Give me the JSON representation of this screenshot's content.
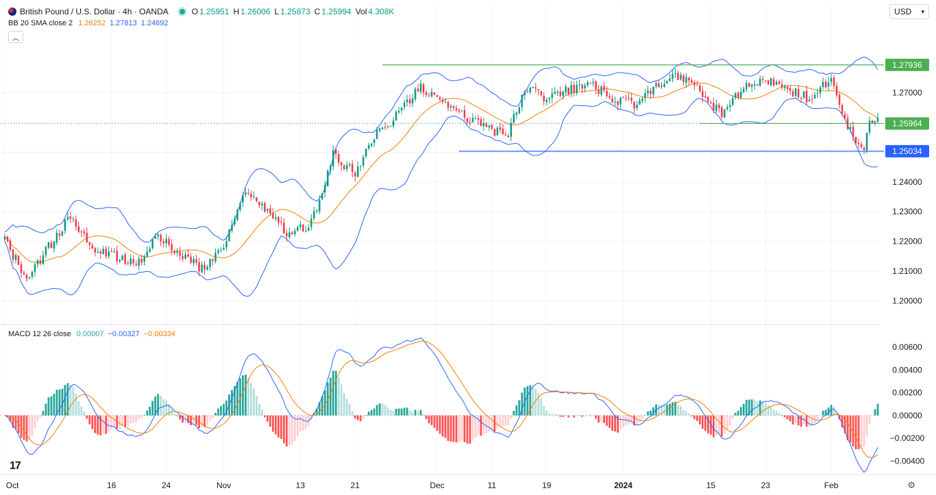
{
  "header": {
    "symbol": "British Pound / U.S. Dollar · 4h · OANDA",
    "ohlc": [
      {
        "key": "O",
        "value": "1.25951"
      },
      {
        "key": "H",
        "value": "1.26006"
      },
      {
        "key": "L",
        "value": "1.25873"
      },
      {
        "key": "C",
        "value": "1.25994"
      }
    ],
    "vol_key": "Vol",
    "vol_value": "4.308K",
    "bb_label": "BB 20 SMA close 2",
    "bb_values": [
      "1.26252",
      "1.27813",
      "1.24692"
    ],
    "macd_label": "MACD 12 26 close",
    "macd_values": [
      "0.00007",
      "−0.00327",
      "−0.00334"
    ],
    "currency": "USD"
  },
  "icons": {
    "flag": "gbp-usd-flag-icon",
    "chevron": "chevron-down-icon",
    "collapse": "chevron-up-icon",
    "logo": "tradingview-logo-icon",
    "settings": "gear-icon"
  },
  "colors": {
    "up": "#089981",
    "down": "#f23645",
    "bb_band": "#2962ff",
    "bb_basis": "#f57c00",
    "macd_line": "#2962ff",
    "signal_line": "#f57c00",
    "level_green": "#4caf50",
    "level_blue": "#2962ff"
  },
  "chart_data": [
    {
      "type": "candlestick",
      "title": "British Pound / U.S. Dollar · 4h · OANDA",
      "ylim": [
        1.193,
        1.2915
      ],
      "y_ticks": [
        "1.27000",
        "1.26000",
        "1.25000",
        "1.24000",
        "1.23000",
        "1.22000",
        "1.21000",
        "1.20000"
      ],
      "x_ticks": [
        "Oct",
        "16",
        "24",
        "Nov",
        "13",
        "21",
        "Dec",
        "11",
        "19",
        "2024",
        "15",
        "23",
        "Feb"
      ],
      "x_tick_bars": [
        0,
        39,
        59,
        80,
        108,
        128,
        158,
        178,
        198,
        226,
        258,
        278,
        302
      ],
      "total_bars": 320,
      "close_path_bars": [
        0,
        8,
        16,
        24,
        32,
        40,
        48,
        56,
        64,
        72,
        80,
        88,
        96,
        104,
        112,
        120,
        128,
        136,
        144,
        152,
        160,
        168,
        176,
        184,
        190,
        198,
        206,
        214,
        222,
        230,
        238,
        246,
        254,
        262,
        270,
        278,
        286,
        294,
        302,
        306,
        310,
        314,
        316
      ],
      "close_path": [
        1.22,
        1.208,
        1.218,
        1.229,
        1.218,
        1.215,
        1.212,
        1.222,
        1.215,
        1.211,
        1.219,
        1.237,
        1.23,
        1.222,
        1.226,
        1.249,
        1.243,
        1.256,
        1.263,
        1.272,
        1.266,
        1.262,
        1.258,
        1.256,
        1.272,
        1.268,
        1.271,
        1.273,
        1.268,
        1.266,
        1.273,
        1.276,
        1.271,
        1.262,
        1.272,
        1.275,
        1.271,
        1.268,
        1.275,
        1.264,
        1.255,
        1.252,
        1.26
      ],
      "levels": [
        {
          "label": "1.27936",
          "value": 1.27936,
          "color": "#4caf50",
          "from_bar": 138
        },
        {
          "label": "1.25964",
          "value": 1.25964,
          "color": "#4caf50",
          "from_bar": 254
        },
        {
          "label": "1.25034",
          "value": 1.25034,
          "color": "#2962ff",
          "from_bar": 166
        }
      ],
      "last_price": 1.25964,
      "series": [
        {
          "name": "BB 20 SMA close 2",
          "values": [
            "1.26252",
            "1.27813",
            "1.24692"
          ]
        }
      ]
    },
    {
      "type": "line",
      "title": "MACD 12 26 close",
      "ylim": [
        -0.0047,
        0.0069
      ],
      "y_ticks": [
        "0.00600",
        "0.00400",
        "0.00200",
        "0.00000",
        "−0.00200",
        "−0.00400"
      ],
      "y_tick_values": [
        0.006,
        0.004,
        0.002,
        0.0,
        -0.002,
        -0.004
      ],
      "series": [
        {
          "name": "MACD",
          "value": "0.00007"
        },
        {
          "name": "Signal",
          "value": "−0.00327"
        },
        {
          "name": "Histogram",
          "value": "−0.00334"
        }
      ]
    }
  ]
}
